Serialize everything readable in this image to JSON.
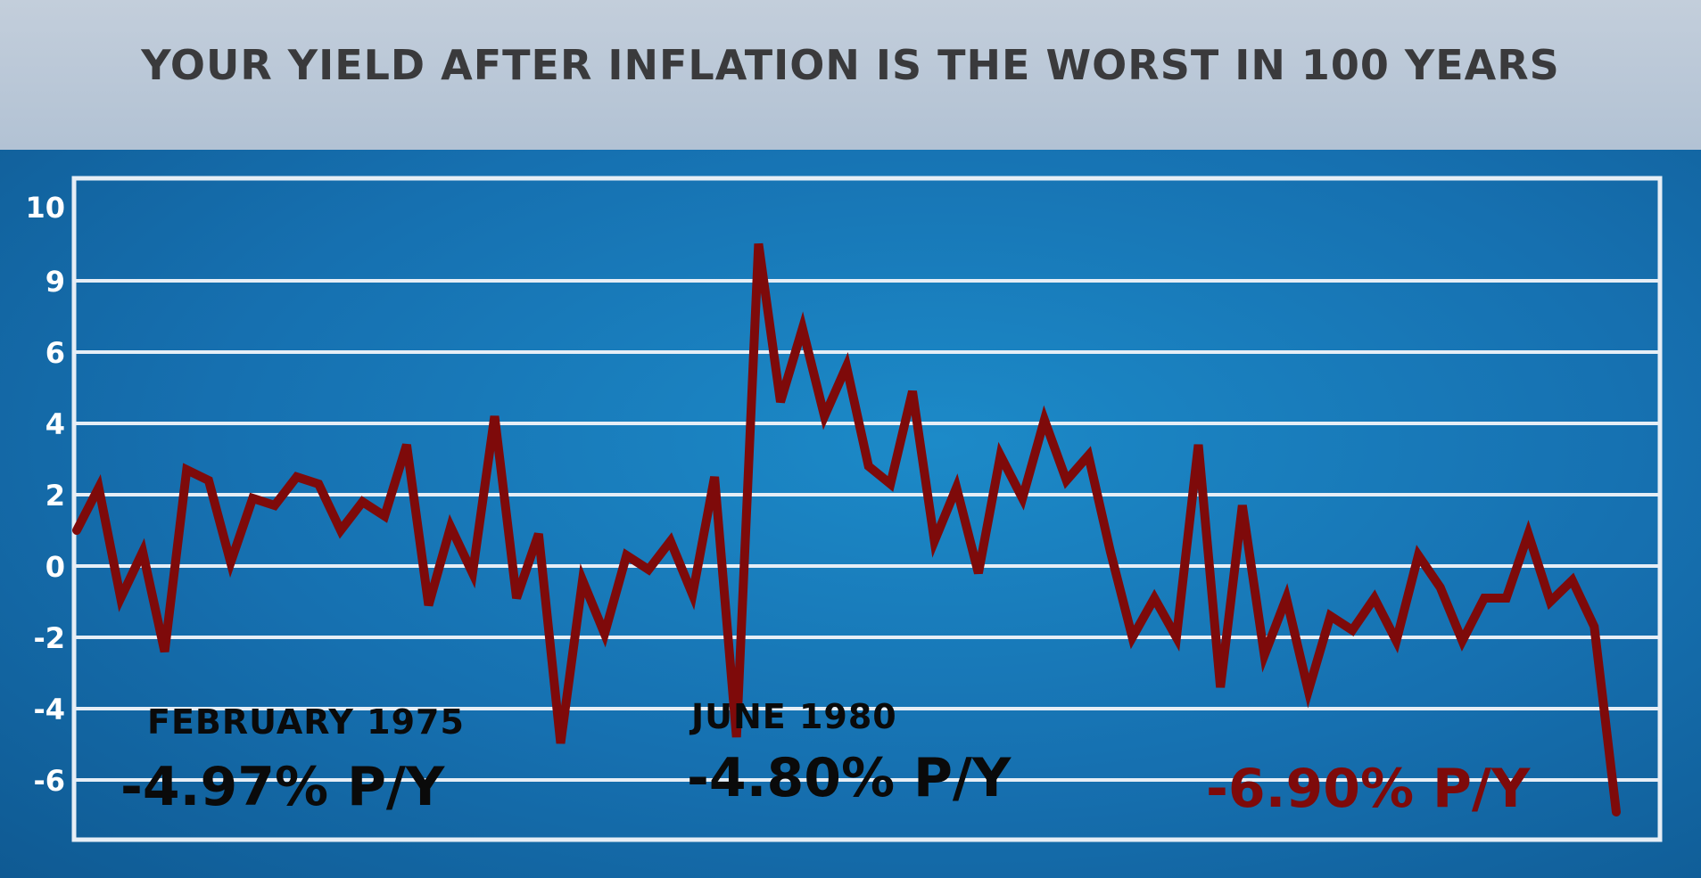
{
  "title": "YOUR YIELD AFTER INFLATION IS THE WORST IN 100 YEARS",
  "annotations": {
    "feb_1975_date": "FEBRUARY 1975",
    "feb_1975_value": "-4.97% P/Y",
    "jun_1980_date": "JUNE 1980",
    "jun_1980_value": "-4.80% P/Y",
    "current_value": "-6.90% P/Y"
  },
  "colors": {
    "line": "#7e0a0a",
    "grid": "#e6eef6",
    "background": "#1a7bbd",
    "title_text": "#3a3a3c"
  },
  "chart_data": {
    "type": "line",
    "title": "YOUR YIELD AFTER INFLATION IS THE WORST IN 100 YEARS",
    "xlabel": "",
    "ylabel": "",
    "yticks": [
      "10",
      "9",
      "6",
      "4",
      "2",
      "0",
      "-2",
      "-4",
      "-6"
    ],
    "grid": true,
    "series": [
      {
        "values": [
          1.0,
          2.2,
          -0.9,
          0.4,
          -2.4,
          2.7,
          2.4,
          0.1,
          1.9,
          1.7,
          2.5,
          2.3,
          1.0,
          1.8,
          1.4,
          3.4,
          -1.1,
          1.1,
          -0.2,
          4.2,
          -0.9,
          0.9,
          -4.97,
          -0.4,
          -1.9,
          0.3,
          -0.1,
          0.7,
          -0.8,
          2.5,
          -4.8,
          9.5,
          4.6,
          7.0,
          4.2,
          5.6,
          2.8,
          2.3,
          4.9,
          0.7,
          2.2,
          -0.2,
          3.1,
          1.9,
          4.1,
          2.4,
          3.1,
          0.4,
          -2.0,
          -0.9,
          -2.0,
          3.4,
          -3.4,
          1.7,
          -2.5,
          -0.9,
          -3.5,
          -1.4,
          -1.8,
          -0.9,
          -2.1,
          0.3,
          -0.6,
          -2.1,
          -0.9,
          -0.9,
          0.9,
          -1.0,
          -0.4,
          -1.7,
          -6.9
        ]
      }
    ]
  }
}
